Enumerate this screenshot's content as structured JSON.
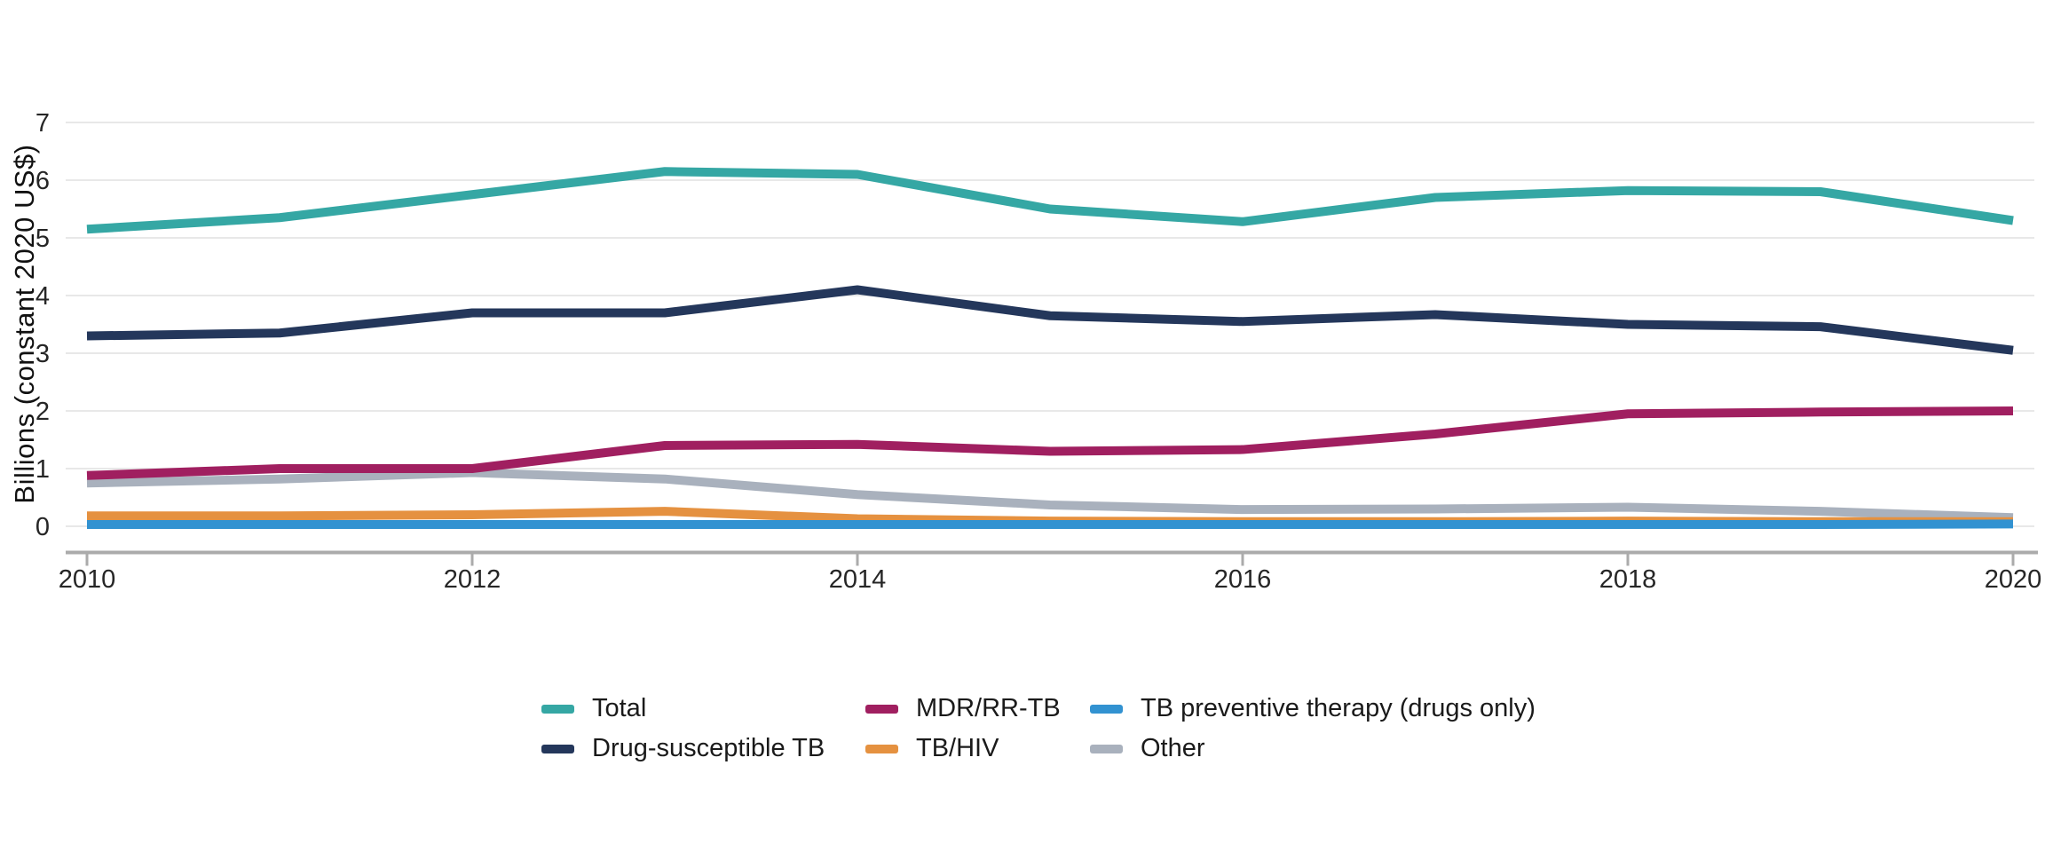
{
  "page": {
    "background": "#ffffff"
  },
  "chart_data": {
    "type": "line",
    "title": "",
    "ylabel": "Billions (constant 2020 US$)",
    "xlabel": "",
    "x": [
      2010,
      2011,
      2012,
      2013,
      2014,
      2015,
      2016,
      2017,
      2018,
      2019,
      2020
    ],
    "x_tick_years": [
      2010,
      2012,
      2014,
      2016,
      2018,
      2020
    ],
    "x_tick_labels": [
      "2010",
      "2012",
      "2014",
      "2016",
      "2018",
      "2020"
    ],
    "y_ticks": [
      0,
      1,
      2,
      3,
      4,
      5,
      6,
      7
    ],
    "ylim": [
      0,
      7
    ],
    "xlim": [
      2010,
      2020
    ],
    "grid": "horizontal",
    "legend_position": "bottom",
    "series": [
      {
        "name": "Total",
        "color": "#35A7A4",
        "values": [
          5.15,
          5.35,
          5.75,
          6.15,
          6.1,
          5.5,
          5.28,
          5.7,
          5.82,
          5.8,
          5.3
        ]
      },
      {
        "name": "Drug-susceptible TB",
        "color": "#24375B",
        "values": [
          3.3,
          3.35,
          3.7,
          3.7,
          4.1,
          3.65,
          3.55,
          3.67,
          3.5,
          3.46,
          3.05
        ]
      },
      {
        "name": "MDR/RR-TB",
        "color": "#A01F60",
        "values": [
          0.88,
          1.0,
          1.0,
          1.4,
          1.42,
          1.3,
          1.33,
          1.6,
          1.95,
          1.98,
          2.0
        ]
      },
      {
        "name": "TB/HIV",
        "color": "#E59140",
        "values": [
          0.18,
          0.18,
          0.2,
          0.26,
          0.13,
          0.09,
          0.08,
          0.08,
          0.09,
          0.08,
          0.08
        ]
      },
      {
        "name": "TB preventive therapy (drugs only)",
        "color": "#3292D1",
        "values": [
          0.03,
          0.03,
          0.03,
          0.03,
          0.03,
          0.03,
          0.03,
          0.03,
          0.03,
          0.03,
          0.04
        ]
      },
      {
        "name": "Other",
        "color": "#A9B1BD",
        "values": [
          0.75,
          0.82,
          0.93,
          0.82,
          0.55,
          0.37,
          0.29,
          0.3,
          0.33,
          0.26,
          0.15
        ]
      }
    ],
    "draw_order": [
      "Other",
      "TB/HIV",
      "TB preventive therapy (drugs only)",
      "MDR/RR-TB",
      "Drug-susceptible TB",
      "Total"
    ]
  },
  "legend": {
    "rows": [
      [
        "Total",
        "MDR/RR-TB",
        "TB preventive therapy (drugs only)"
      ],
      [
        "Drug-susceptible TB",
        "TB/HIV",
        "Other"
      ]
    ]
  },
  "axis_colors": {
    "gridline": "#E8E8E8",
    "axis_line": "#ABABAB",
    "tick_text": "#262626"
  }
}
